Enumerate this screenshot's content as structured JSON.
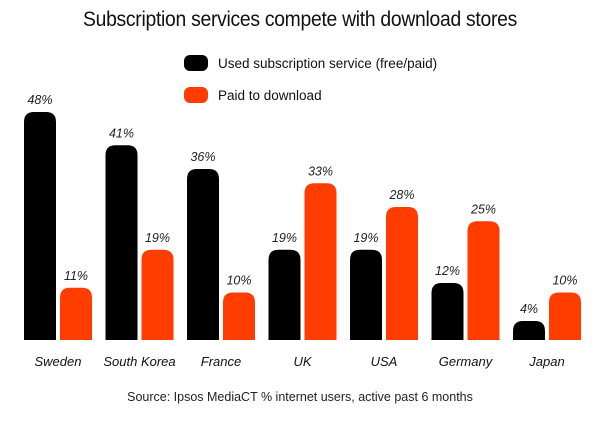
{
  "chart_data": {
    "type": "bar",
    "title": "Subscription services compete with download stores",
    "categories": [
      "Sweden",
      "South Korea",
      "France",
      "UK",
      "USA",
      "Germany",
      "Japan"
    ],
    "series": [
      {
        "name": "Used subscription service (free/paid)",
        "color": "#000000",
        "values": [
          48,
          41,
          36,
          19,
          19,
          12,
          4
        ],
        "labels": [
          "48%",
          "41%",
          "36%",
          "19%",
          "19%",
          "12%",
          "4%"
        ]
      },
      {
        "name": "Paid to download",
        "color": "#ff3d00",
        "values": [
          11,
          19,
          10,
          33,
          28,
          25,
          10
        ],
        "labels": [
          "11%",
          "19%",
          "10%",
          "33%",
          "28%",
          "25%",
          "10%"
        ]
      }
    ],
    "ylim": [
      0,
      48
    ],
    "xlabel": "",
    "ylabel": "",
    "grid": false,
    "legend_position": "top-center",
    "source": "Source: Ipsos MediaCT % internet users, active past 6 months"
  }
}
